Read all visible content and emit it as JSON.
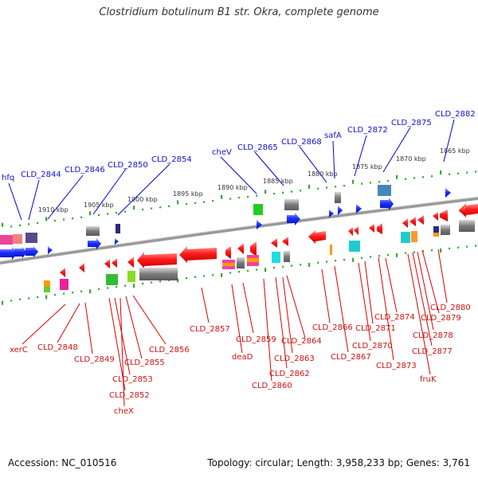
{
  "title": "Clostridium botulinum B1 str. Okra, complete genome",
  "footer": {
    "accession": "Accession: NC_010516",
    "topology": "Topology: circular; Length: 3,958,233 bp; Genes: 3,761"
  },
  "colors": {
    "backbone": "#808080",
    "tick": "#33aa33",
    "top_label": "#1111cc",
    "bottom_label": "#cc1111",
    "leader_top": "#0000dd",
    "leader_bottom": "#dd0000"
  },
  "scale_labels": [
    "1910 kbp",
    "1905 kbp",
    "1900 kbp",
    "1895 kbp",
    "1890 kbp",
    "1885 kbp",
    "1880 kbp",
    "1875 kbp",
    "1870 kbp",
    "1865 kbp"
  ],
  "top_genes": [
    "hfq",
    "CLD_2844",
    "CLD_2846",
    "CLD_2850",
    "CLD_2854",
    "cheV",
    "CLD_2865",
    "CLD_2868",
    "safA",
    "CLD_2872",
    "CLD_2875",
    "CLD_2882"
  ],
  "bottom_genes": [
    "xerC",
    "CLD_2848",
    "CLD_2849",
    "CLD_2852",
    "CLD_2853",
    "cheX",
    "CLD_2855",
    "CLD_2856",
    "CLD_2857",
    "CLD_2859",
    "deaD",
    "CLD_2860",
    "CLD_2862",
    "CLD_2863",
    "CLD_2864",
    "CLD_2866",
    "CLD_2867",
    "CLD_2870",
    "CLD_2871",
    "CLD_2873",
    "CLD_2874",
    "fruK",
    "CLD_2877",
    "CLD_2878",
    "CLD_2879",
    "CLD_2880"
  ]
}
